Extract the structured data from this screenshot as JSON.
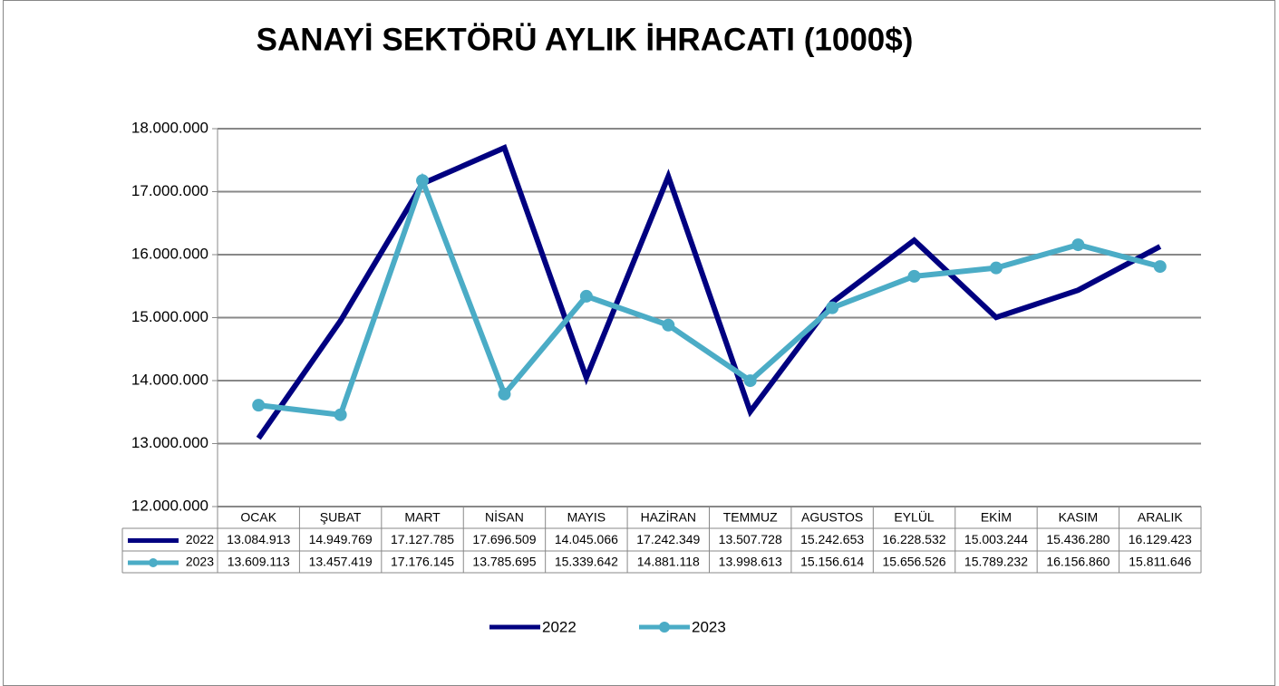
{
  "chart_data": {
    "type": "line",
    "title": "SANAYİ SEKTÖRÜ AYLIK İHRACATI (1000$)",
    "categories": [
      "OCAK",
      "ŞUBAT",
      "MART",
      "NİSAN",
      "MAYIS",
      "HAZİRAN",
      "TEMMUZ",
      "AGUSTOS",
      "EYLÜL",
      "EKİM",
      "KASIM",
      "ARALIK"
    ],
    "series": [
      {
        "name": "2022",
        "color": "#000080",
        "marker": false,
        "values": [
          13084913,
          14949769,
          17127785,
          17696509,
          14045066,
          17242349,
          13507728,
          15242653,
          16228532,
          15003244,
          15436280,
          16129423
        ],
        "value_labels": [
          "13.084.913",
          "14.949.769",
          "17.127.785",
          "17.696.509",
          "14.045.066",
          "17.242.349",
          "13.507.728",
          "15.242.653",
          "16.228.532",
          "15.003.244",
          "15.436.280",
          "16.129.423"
        ]
      },
      {
        "name": "2023",
        "color": "#4bacc6",
        "marker": true,
        "values": [
          13609113,
          13457419,
          17176145,
          13785695,
          15339642,
          14881118,
          13998613,
          15156614,
          15656526,
          15789232,
          16156860,
          15811646
        ],
        "value_labels": [
          "13.609.113",
          "13.457.419",
          "17.176.145",
          "13.785.695",
          "15.339.642",
          "14.881.118",
          "13.998.613",
          "15.156.614",
          "15.656.526",
          "15.789.232",
          "16.156.860",
          "15.811.646"
        ]
      }
    ],
    "ylim": [
      12000000,
      18000000
    ],
    "yticks": [
      {
        "value": 12000000,
        "label": "12.000.000"
      },
      {
        "value": 13000000,
        "label": "13.000.000"
      },
      {
        "value": 14000000,
        "label": "14.000.000"
      },
      {
        "value": 15000000,
        "label": "15.000.000"
      },
      {
        "value": 16000000,
        "label": "16.000.000"
      },
      {
        "value": 17000000,
        "label": "17.000.000"
      },
      {
        "value": 18000000,
        "label": "18.000.000"
      }
    ],
    "grid": true,
    "legend": "bottom"
  }
}
